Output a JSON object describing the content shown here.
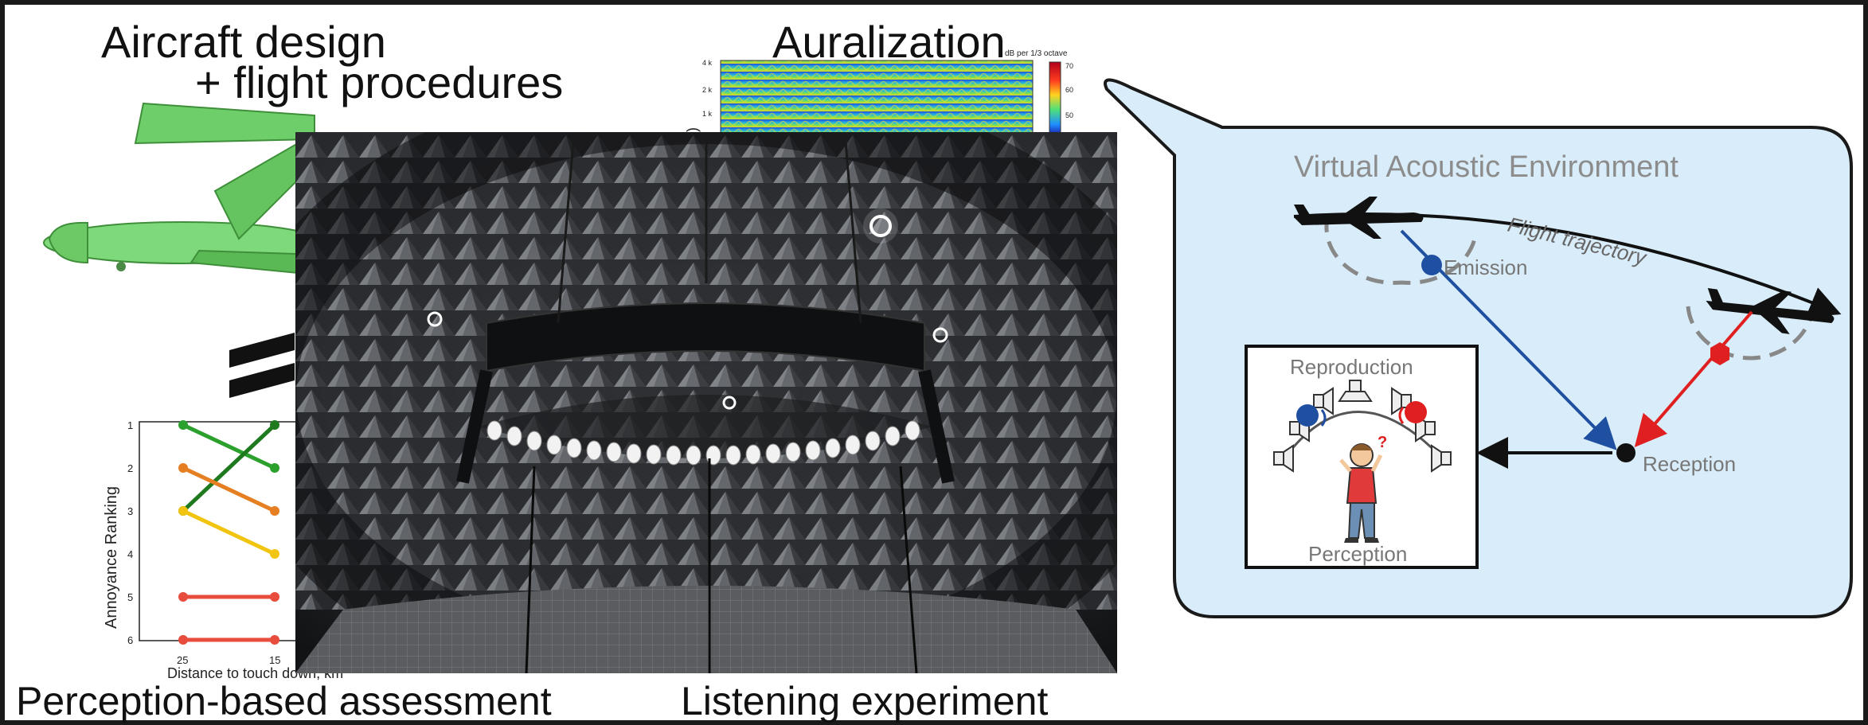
{
  "titles": {
    "aircraft_design_line1": "Aircraft design",
    "aircraft_design_line2": "+ flight procedures",
    "auralization": "Auralization",
    "perception_assessment": "Perception-based assessment",
    "listening_experiment": "Listening experiment"
  },
  "spectrogram": {
    "colorbar_label": "dB per 1/3 octave",
    "colorbar_ticks": [
      "70",
      "60",
      "50"
    ],
    "y_ticks": [
      "4 k",
      "2 k",
      "1 k"
    ],
    "ylabel_fragment": "(g"
  },
  "ranking_chart": {
    "ylabel": "Annoyance Ranking",
    "xlabel": "Distance to touch down, km",
    "y_ticks": [
      "1",
      "2",
      "3",
      "4",
      "5",
      "6"
    ],
    "x_ticks": [
      "25",
      "15"
    ]
  },
  "chart_data": {
    "type": "line",
    "xlabel": "Distance to touch down, km",
    "ylabel": "Annoyance Ranking",
    "x": [
      25,
      15
    ],
    "ylim": [
      1,
      6
    ],
    "y_inverted": true,
    "series": [
      {
        "color": "#2ca02c",
        "values": [
          1,
          2
        ]
      },
      {
        "color": "#1f7a1f",
        "values": [
          3,
          1
        ]
      },
      {
        "color": "#e67e22",
        "values": [
          2,
          3
        ]
      },
      {
        "color": "#f1c40f",
        "values": [
          3,
          4
        ]
      },
      {
        "color": "#e74c3c",
        "values": [
          5,
          5
        ]
      },
      {
        "color": "#e74c3c",
        "values": [
          6,
          6
        ]
      }
    ]
  },
  "vae": {
    "title": "Virtual Acoustic Environment",
    "emission": "Emission",
    "flight_trajectory": "Flight trajectory",
    "reception": "Reception",
    "reproduction": "Reproduction",
    "perception": "Perception",
    "question_mark": "?",
    "colors": {
      "bubble_fill": "#d9ecf9",
      "emission_path": "#1f4fa0",
      "reception_path": "#e02020"
    }
  }
}
